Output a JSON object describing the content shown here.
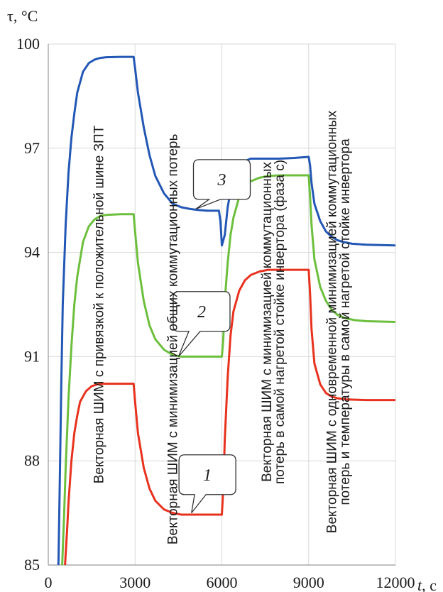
{
  "chart_data": {
    "type": "line",
    "title": "",
    "ylabel": "τ, °C",
    "xlabel_italic": "t",
    "xlabel_unit": ", c",
    "xlim": [
      0,
      12000
    ],
    "ylim": [
      85,
      100
    ],
    "xticks": [
      0,
      3000,
      6000,
      9000,
      12000
    ],
    "yticks": [
      85,
      88,
      91,
      94,
      97,
      100
    ],
    "grid": true,
    "colors": {
      "series_1": "#e8321e",
      "series_2": "#6cbf3c",
      "series_3": "#2257b5",
      "grid": "#d9d9d9",
      "axis": "#9a9a9a"
    },
    "series": [
      {
        "id": "3",
        "x": [
          350,
          400,
          450,
          500,
          600,
          700,
          800,
          900,
          1000,
          1200,
          1400,
          1600,
          1800,
          2000,
          2500,
          2950,
          3000,
          3100,
          3300,
          3500,
          3700,
          4000,
          4300,
          4600,
          4900,
          5200,
          5500,
          5900,
          5950,
          6000,
          6100,
          6200,
          6350,
          6500,
          6700,
          7000,
          7500,
          8000,
          8500,
          9000,
          9050,
          9100,
          9200,
          9400,
          9600,
          9800,
          10000,
          10200,
          10500,
          11000,
          12000
        ],
        "y": [
          85,
          87.5,
          90.2,
          92.5,
          94.8,
          96.3,
          97.3,
          98,
          98.6,
          99.2,
          99.45,
          99.55,
          99.6,
          99.62,
          99.63,
          99.63,
          99.3,
          98.6,
          97.6,
          96.8,
          96.2,
          95.7,
          95.4,
          95.3,
          95.25,
          95.22,
          95.2,
          95.2,
          94.9,
          94.2,
          94.5,
          95.3,
          96,
          96.4,
          96.6,
          96.7,
          96.7,
          96.7,
          96.72,
          96.75,
          96.5,
          96,
          95.4,
          94.9,
          94.6,
          94.45,
          94.35,
          94.3,
          94.25,
          94.22,
          94.2
        ]
      },
      {
        "id": "2",
        "x": [
          480,
          550,
          600,
          700,
          800,
          900,
          1000,
          1200,
          1400,
          1600,
          1800,
          2000,
          2500,
          2950,
          3000,
          3100,
          3300,
          3500,
          3700,
          4000,
          4300,
          4600,
          5000,
          5500,
          6000,
          6050,
          6100,
          6200,
          6300,
          6400,
          6600,
          6800,
          7000,
          7300,
          7600,
          8000,
          8500,
          9000,
          9050,
          9100,
          9200,
          9400,
          9600,
          9800,
          10000,
          10300,
          10600,
          11000,
          12000
        ],
        "y": [
          85,
          86.5,
          87.8,
          89.8,
          91.3,
          92.5,
          93.3,
          94.3,
          94.75,
          94.95,
          95.05,
          95.08,
          95.1,
          95.1,
          94.6,
          93.7,
          92.6,
          91.9,
          91.5,
          91.2,
          91.05,
          91,
          91,
          91,
          91,
          91.5,
          92.6,
          93.7,
          94.5,
          95,
          95.6,
          95.9,
          96.05,
          96.15,
          96.2,
          96.22,
          96.22,
          96.22,
          95.6,
          94.8,
          93.8,
          93,
          92.6,
          92.35,
          92.2,
          92.1,
          92.05,
          92.02,
          92
        ]
      },
      {
        "id": "1",
        "x": [
          580,
          650,
          700,
          800,
          900,
          1000,
          1100,
          1300,
          1500,
          1700,
          1900,
          2200,
          2600,
          2950,
          3000,
          3100,
          3300,
          3500,
          3700,
          4000,
          4300,
          4600,
          5000,
          5500,
          6000,
          6050,
          6100,
          6200,
          6300,
          6400,
          6600,
          6800,
          7000,
          7300,
          7600,
          8000,
          8500,
          9000,
          9050,
          9100,
          9200,
          9400,
          9600,
          9800,
          10000,
          10300,
          10600,
          11000,
          12000
        ],
        "y": [
          85,
          86,
          86.8,
          88,
          88.8,
          89.3,
          89.7,
          90,
          90.15,
          90.2,
          90.22,
          90.22,
          90.22,
          90.22,
          89.7,
          88.8,
          87.8,
          87.2,
          86.85,
          86.6,
          86.5,
          86.45,
          86.45,
          86.45,
          86.45,
          87.2,
          88.6,
          90.4,
          91.6,
          92.3,
          92.9,
          93.2,
          93.35,
          93.45,
          93.5,
          93.5,
          93.5,
          93.5,
          92.8,
          91.8,
          90.8,
          90.2,
          89.95,
          89.85,
          89.8,
          89.77,
          89.76,
          89.75,
          89.75
        ]
      }
    ],
    "annotations": [
      {
        "id": "a1",
        "text": "Векторная ШИМ с привязкой к положительной шине ЗПТ",
        "x": 1900,
        "y": 92.5
      },
      {
        "id": "a2",
        "text": "Векторная ШИМ с минимизацией общих коммутационных потерь",
        "x": 4450,
        "y": 91.5
      },
      {
        "id": "a3a",
        "text": "Векторная ШИМ с минимизацией коммутационных",
        "x": 7700,
        "y": 92
      },
      {
        "id": "a3b",
        "text": "потерь в самой нагретой стойке инвертора (фаза c)",
        "x": 8150,
        "y": 92
      },
      {
        "id": "a4a",
        "text": "Векторная ШИМ с одновременной минимизацией коммутационных",
        "x": 9950,
        "y": 92
      },
      {
        "id": "a4b",
        "text": "потерь и температуры в самой нагретой стойке инвертора",
        "x": 10400,
        "y": 92
      }
    ],
    "callouts": [
      {
        "label": "1",
        "box_x": 5500,
        "box_y": 87.6,
        "tip_x": 4950,
        "tip_y": 86.5
      },
      {
        "label": "2",
        "box_x": 5300,
        "box_y": 92.3,
        "tip_x": 4500,
        "tip_y": 91.0
      },
      {
        "label": "3",
        "box_x": 6000,
        "box_y": 96.1,
        "tip_x": 5100,
        "tip_y": 95.25
      }
    ]
  }
}
